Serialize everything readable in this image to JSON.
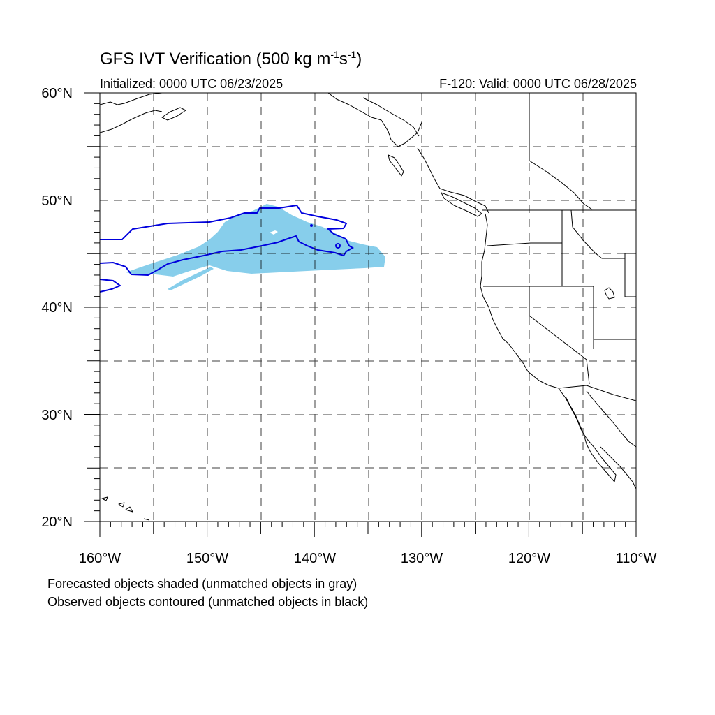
{
  "header": {
    "title_main": "GFS IVT Verification (500 kg m",
    "title_exp1": "-1",
    "title_mid": "s",
    "title_exp2": "-1",
    "title_end": ")",
    "initialized": "Initialized: 0000 UTC 06/23/2025",
    "valid": "F-120: Valid: 0000 UTC 06/28/2025"
  },
  "map": {
    "lon_range": [
      -160,
      -110
    ],
    "lat_range": [
      20,
      60
    ],
    "lat_labels": [
      "20°N",
      "30°N",
      "40°N",
      "50°N",
      "60°N"
    ],
    "lon_labels": [
      "160°W",
      "150°W",
      "140°W",
      "130°W",
      "120°W",
      "110°W"
    ],
    "colors": {
      "forecast_shading": "#87ceeb",
      "observed_contour": "#0000dd",
      "coastline": "#000000",
      "grid": "#000000"
    }
  },
  "captions": {
    "forecast": "Forecasted objects shaded (unmatched objects in gray)",
    "observed": "Observed objects contoured (unmatched objects in black)"
  }
}
